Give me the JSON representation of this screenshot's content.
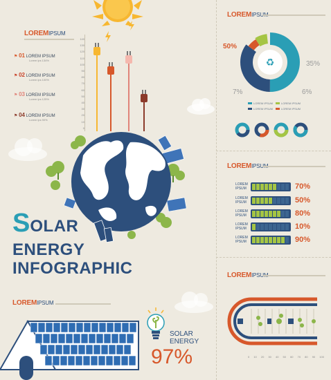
{
  "colors": {
    "navy": "#2d4f7c",
    "teal": "#2a9eb5",
    "orange": "#d7582b",
    "green": "#a5c544",
    "cream": "#eeeae0",
    "sun": "#f7b731"
  },
  "left_panel": {
    "title_lorem": "LOREM",
    "title_ipsum": "IPSUM",
    "steps": [
      {
        "num": "01",
        "label": "LOREM IPSUM",
        "sub": "Lorem ips 134%"
      },
      {
        "num": "02",
        "label": "LOREM IPSUM",
        "sub": "Lorem ips 100%"
      },
      {
        "num": "03",
        "label": "LOREM IPSUM",
        "sub": "Lorem ips 125%"
      },
      {
        "num": "04",
        "label": "LOREM IPSUM",
        "sub": "Lorem ips 90%"
      }
    ],
    "axis_ticks": [
      "140",
      "130",
      "120",
      "110",
      "100",
      "90",
      "80",
      "70",
      "60",
      "50",
      "40",
      "30",
      "20",
      "10",
      "0"
    ]
  },
  "heading": {
    "s": "S",
    "line1": "OLAR",
    "line2": "ENERGY",
    "line3": "INFOGRAPHIC"
  },
  "bottom_left": {
    "title_lorem": "LOREM",
    "title_ipsum": "IPSUM",
    "bulb_line1": "SOLAR",
    "bulb_line2": "ENERGY",
    "bulb_pct": "97%"
  },
  "donut": {
    "title_lorem": "LOREM",
    "title_ipsum": "IPSUM",
    "labels": {
      "p50": "50%",
      "p35": "35%",
      "p7": "7%",
      "p6": "6%"
    },
    "legend": [
      "LOREM IPSUM",
      "LOREM IPSUM",
      "LOREM IPSUM",
      "LOREM IPSUM",
      "LOREM IPSUM",
      "LOREM IPSUM"
    ]
  },
  "bars": {
    "title_lorem": "LOREM",
    "title_ipsum": "IPSUM",
    "rows": [
      {
        "label": "LOREM IPSUM",
        "pct": "70%",
        "fill": 0.7
      },
      {
        "label": "LOREM IPSUM",
        "pct": "50%",
        "fill": 0.5
      },
      {
        "label": "LOREM IPSUM",
        "pct": "80%",
        "fill": 0.8
      },
      {
        "label": "LOREM IPSUM",
        "pct": "10%",
        "fill": 0.1
      },
      {
        "label": "LOREM IPSUM",
        "pct": "90%",
        "fill": 0.9
      }
    ]
  },
  "timeline": {
    "title_lorem": "LOREM",
    "title_ipsum": "IPSUM",
    "ticks": [
      "0",
      "10",
      "20",
      "30",
      "40",
      "50",
      "60",
      "70",
      "80",
      "90",
      "100"
    ]
  }
}
